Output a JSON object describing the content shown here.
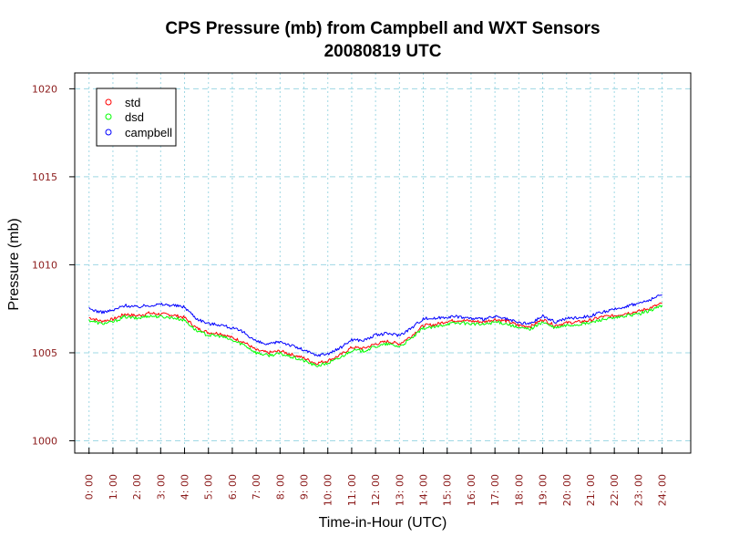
{
  "chart_data": {
    "type": "line",
    "title": "CPS Pressure (mb) from Campbell and WXT Sensors",
    "subtitle": "20080819  UTC",
    "xlabel": "Time-in-Hour (UTC)",
    "ylabel": "Pressure (mb)",
    "xlim": [
      -0.6,
      25.2
    ],
    "ylim": [
      999.3,
      1020.9
    ],
    "y_ticks": [
      1000,
      1005,
      1010,
      1015,
      1020
    ],
    "y_tick_labels": [
      "1000",
      "1005",
      "1010",
      "1015",
      "1020"
    ],
    "x_ticks": [
      0,
      1,
      2,
      3,
      4,
      5,
      6,
      7,
      8,
      9,
      10,
      11,
      12,
      13,
      14,
      15,
      16,
      17,
      18,
      19,
      20,
      21,
      22,
      23,
      24
    ],
    "x_tick_labels": [
      "0: 00",
      "1: 00",
      "2: 00",
      "3: 00",
      "4: 00",
      "5: 00",
      "6: 00",
      "7: 00",
      "8: 00",
      "9: 00",
      "10: 00",
      "11: 00",
      "12: 00",
      "13: 00",
      "14: 00",
      "15: 00",
      "16: 00",
      "17: 00",
      "18: 00",
      "19: 00",
      "20: 00",
      "21: 00",
      "22: 00",
      "23: 00",
      "24: 00"
    ],
    "grid": true,
    "legend_position": "top-left",
    "series": [
      {
        "name": "std",
        "color": "#ff0000",
        "x": [
          0,
          0.5,
          1,
          1.5,
          2,
          2.5,
          3,
          3.5,
          4,
          4.5,
          5,
          5.5,
          6,
          6.5,
          7,
          7.5,
          8,
          8.5,
          9,
          9.5,
          10,
          10.5,
          11,
          11.5,
          12,
          12.5,
          13,
          13.5,
          14,
          14.5,
          15,
          15.5,
          16,
          16.5,
          17,
          17.5,
          18,
          18.5,
          19,
          19.5,
          20,
          20.5,
          21,
          21.5,
          22,
          22.5,
          23,
          23.5,
          24
        ],
        "values": [
          1007.0,
          1006.8,
          1006.9,
          1007.2,
          1007.1,
          1007.25,
          1007.2,
          1007.15,
          1007.0,
          1006.4,
          1006.15,
          1006.1,
          1005.85,
          1005.6,
          1005.15,
          1005.0,
          1005.1,
          1004.9,
          1004.7,
          1004.4,
          1004.55,
          1004.85,
          1005.3,
          1005.25,
          1005.5,
          1005.65,
          1005.5,
          1005.95,
          1006.55,
          1006.6,
          1006.8,
          1006.85,
          1006.8,
          1006.75,
          1006.9,
          1006.8,
          1006.55,
          1006.5,
          1006.9,
          1006.55,
          1006.7,
          1006.75,
          1006.85,
          1007.05,
          1007.1,
          1007.25,
          1007.35,
          1007.55,
          1007.8
        ]
      },
      {
        "name": "dsd",
        "color": "#00ff00",
        "x": [
          0,
          0.5,
          1,
          1.5,
          2,
          2.5,
          3,
          3.5,
          4,
          4.5,
          5,
          5.5,
          6,
          6.5,
          7,
          7.5,
          8,
          8.5,
          9,
          9.5,
          10,
          10.5,
          11,
          11.5,
          12,
          12.5,
          13,
          13.5,
          14,
          14.5,
          15,
          15.5,
          16,
          16.5,
          17,
          17.5,
          18,
          18.5,
          19,
          19.5,
          20,
          20.5,
          21,
          21.5,
          22,
          22.5,
          23,
          23.5,
          24
        ],
        "values": [
          1006.85,
          1006.65,
          1006.75,
          1007.05,
          1006.95,
          1007.1,
          1007.05,
          1007.0,
          1006.85,
          1006.25,
          1006.0,
          1005.95,
          1005.7,
          1005.45,
          1005.0,
          1004.85,
          1004.95,
          1004.75,
          1004.55,
          1004.25,
          1004.4,
          1004.7,
          1005.15,
          1005.1,
          1005.35,
          1005.5,
          1005.35,
          1005.8,
          1006.4,
          1006.45,
          1006.65,
          1006.7,
          1006.65,
          1006.6,
          1006.75,
          1006.65,
          1006.4,
          1006.35,
          1006.75,
          1006.4,
          1006.55,
          1006.6,
          1006.7,
          1006.9,
          1006.95,
          1007.1,
          1007.2,
          1007.4,
          1007.7
        ]
      },
      {
        "name": "campbell",
        "color": "#0000ff",
        "x": [
          0,
          0.5,
          1,
          1.5,
          2,
          2.5,
          3,
          3.5,
          4,
          4.5,
          5,
          5.5,
          6,
          6.5,
          7,
          7.5,
          8,
          8.5,
          9,
          9.5,
          10,
          10.5,
          11,
          11.5,
          12,
          12.5,
          13,
          13.5,
          14,
          14.5,
          15,
          15.5,
          16,
          16.5,
          17,
          17.5,
          18,
          18.5,
          19,
          19.5,
          20,
          20.5,
          21,
          21.5,
          22,
          22.5,
          23,
          23.5,
          24
        ],
        "values": [
          1007.5,
          1007.3,
          1007.4,
          1007.7,
          1007.6,
          1007.7,
          1007.75,
          1007.7,
          1007.6,
          1006.95,
          1006.65,
          1006.6,
          1006.4,
          1006.15,
          1005.65,
          1005.45,
          1005.65,
          1005.4,
          1005.15,
          1004.85,
          1004.95,
          1005.25,
          1005.75,
          1005.7,
          1006.0,
          1006.1,
          1006.0,
          1006.4,
          1006.95,
          1006.95,
          1007.05,
          1007.05,
          1006.95,
          1006.9,
          1007.05,
          1006.9,
          1006.7,
          1006.65,
          1007.1,
          1006.75,
          1006.95,
          1007.0,
          1007.1,
          1007.3,
          1007.45,
          1007.65,
          1007.8,
          1008.0,
          1008.3
        ]
      }
    ]
  }
}
